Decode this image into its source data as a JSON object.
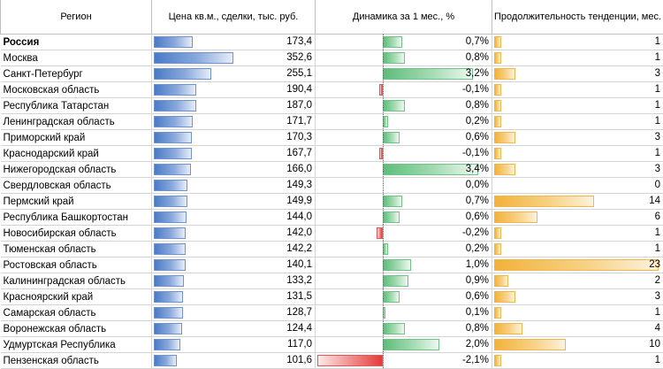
{
  "table": {
    "headers": {
      "region": "Регион",
      "price": "Цена кв.м., сделки, тыс. руб.",
      "dynamics": "Динамика за 1 мес., %",
      "duration": "Продолжительность тенденции, мес."
    },
    "rows": [
      {
        "region": "Россия",
        "price": "173,4",
        "price_value": 173.4,
        "dynamics": "0,7%",
        "dynamics_value": 0.7,
        "duration": "1",
        "duration_value": 1,
        "bold": true
      },
      {
        "region": "Москва",
        "price": "352,6",
        "price_value": 352.6,
        "dynamics": "0,8%",
        "dynamics_value": 0.8,
        "duration": "1",
        "duration_value": 1
      },
      {
        "region": "Санкт-Петербург",
        "price": "255,1",
        "price_value": 255.1,
        "dynamics": "3,2%",
        "dynamics_value": 3.2,
        "duration": "3",
        "duration_value": 3
      },
      {
        "region": "Московская область",
        "price": "190,4",
        "price_value": 190.4,
        "dynamics": "-0,1%",
        "dynamics_value": -0.1,
        "duration": "1",
        "duration_value": 1
      },
      {
        "region": "Республика Татарстан",
        "price": "187,0",
        "price_value": 187.0,
        "dynamics": "0,8%",
        "dynamics_value": 0.8,
        "duration": "1",
        "duration_value": 1
      },
      {
        "region": "Ленинградская область",
        "price": "171,7",
        "price_value": 171.7,
        "dynamics": "0,2%",
        "dynamics_value": 0.2,
        "duration": "1",
        "duration_value": 1
      },
      {
        "region": "Приморский край",
        "price": "170,3",
        "price_value": 170.3,
        "dynamics": "0,6%",
        "dynamics_value": 0.6,
        "duration": "3",
        "duration_value": 3
      },
      {
        "region": "Краснодарский край",
        "price": "167,7",
        "price_value": 167.7,
        "dynamics": "-0,1%",
        "dynamics_value": -0.1,
        "duration": "1",
        "duration_value": 1
      },
      {
        "region": "Нижегородская область",
        "price": "166,0",
        "price_value": 166.0,
        "dynamics": "3,4%",
        "dynamics_value": 3.4,
        "duration": "3",
        "duration_value": 3
      },
      {
        "region": "Свердловская область",
        "price": "149,3",
        "price_value": 149.3,
        "dynamics": "0,0%",
        "dynamics_value": 0.0,
        "duration": "0",
        "duration_value": 0
      },
      {
        "region": "Пермский край",
        "price": "149,9",
        "price_value": 149.9,
        "dynamics": "0,7%",
        "dynamics_value": 0.7,
        "duration": "14",
        "duration_value": 14
      },
      {
        "region": "Республика Башкортостан",
        "price": "144,0",
        "price_value": 144.0,
        "dynamics": "0,6%",
        "dynamics_value": 0.6,
        "duration": "6",
        "duration_value": 6
      },
      {
        "region": "Новосибирская область",
        "price": "142,0",
        "price_value": 142.0,
        "dynamics": "-0,2%",
        "dynamics_value": -0.2,
        "duration": "1",
        "duration_value": 1
      },
      {
        "region": "Тюменская область",
        "price": "142,2",
        "price_value": 142.2,
        "dynamics": "0,2%",
        "dynamics_value": 0.2,
        "duration": "1",
        "duration_value": 1
      },
      {
        "region": "Ростовская область",
        "price": "140,1",
        "price_value": 140.1,
        "dynamics": "1,0%",
        "dynamics_value": 1.0,
        "duration": "23",
        "duration_value": 23
      },
      {
        "region": "Калининградская область",
        "price": "133,2",
        "price_value": 133.2,
        "dynamics": "0,9%",
        "dynamics_value": 0.9,
        "duration": "2",
        "duration_value": 2
      },
      {
        "region": "Красноярский край",
        "price": "131,5",
        "price_value": 131.5,
        "dynamics": "0,6%",
        "dynamics_value": 0.6,
        "duration": "3",
        "duration_value": 3
      },
      {
        "region": "Самарская область",
        "price": "128,7",
        "price_value": 128.7,
        "dynamics": "0,1%",
        "dynamics_value": 0.1,
        "duration": "1",
        "duration_value": 1
      },
      {
        "region": "Воронежская область",
        "price": "124,4",
        "price_value": 124.4,
        "dynamics": "0,8%",
        "dynamics_value": 0.8,
        "duration": "4",
        "duration_value": 4
      },
      {
        "region": "Удмуртская Республика",
        "price": "117,0",
        "price_value": 117.0,
        "dynamics": "2,0%",
        "dynamics_value": 2.0,
        "duration": "10",
        "duration_value": 10
      },
      {
        "region": "Пензенская область",
        "price": "101,6",
        "price_value": 101.6,
        "dynamics": "-2,1%",
        "dynamics_value": -2.1,
        "duration": "1",
        "duration_value": 1
      }
    ]
  },
  "colors": {
    "price_bar": "#6f93d0",
    "positive_bar": "#6cc586",
    "negative_bar": "#e35656",
    "duration_bar": "#f2b64a"
  }
}
